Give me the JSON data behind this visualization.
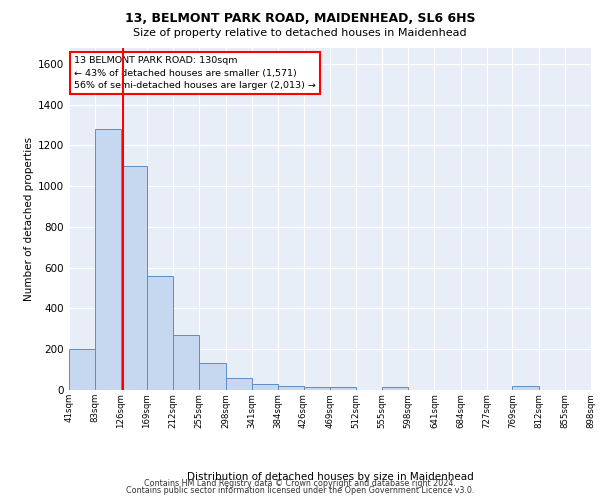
{
  "title_line1": "13, BELMONT PARK ROAD, MAIDENHEAD, SL6 6HS",
  "title_line2": "Size of property relative to detached houses in Maidenhead",
  "xlabel": "Distribution of detached houses by size in Maidenhead",
  "ylabel": "Number of detached properties",
  "footer_line1": "Contains HM Land Registry data © Crown copyright and database right 2024.",
  "footer_line2": "Contains public sector information licensed under the Open Government Licence v3.0.",
  "annotation_line1": "13 BELMONT PARK ROAD: 130sqm",
  "annotation_line2": "← 43% of detached houses are smaller (1,571)",
  "annotation_line3": "56% of semi-detached houses are larger (2,013) →",
  "bin_edges": [
    41,
    83,
    126,
    169,
    212,
    255,
    298,
    341,
    384,
    426,
    469,
    512,
    555,
    598,
    641,
    684,
    727,
    769,
    812,
    855,
    898
  ],
  "bar_heights": [
    200,
    1280,
    1100,
    560,
    270,
    130,
    60,
    30,
    20,
    15,
    15,
    0,
    15,
    0,
    0,
    0,
    0,
    20,
    0,
    0
  ],
  "bar_color": "#c5d8f0",
  "bar_edge_color": "#5b8ec5",
  "red_line_x": 130,
  "ylim": [
    0,
    1680
  ],
  "xlim": [
    41,
    898
  ],
  "yticks": [
    0,
    200,
    400,
    600,
    800,
    1000,
    1200,
    1400,
    1600
  ],
  "bg_color": "#e8eef8",
  "grid_color": "white",
  "annotation_box_color": "white",
  "annotation_box_edge": "red"
}
